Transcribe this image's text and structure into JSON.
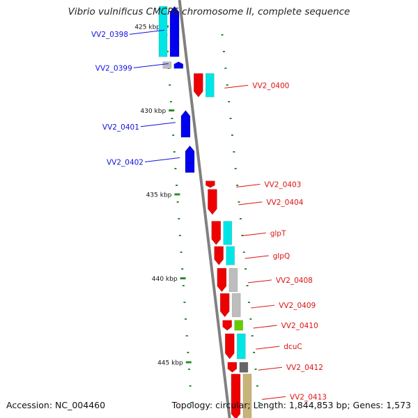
{
  "title": "Vibrio vulnificus CMCP6 chromosome II, complete sequence",
  "footer": {
    "accession": "Accession: NC_004460",
    "topology": "Topology: circular; Length: 1,844,853 bp; Genes: 1,573"
  },
  "colors": {
    "backbone": "#808080",
    "tick": "#2e8b2e",
    "label_blue": "#1010dd",
    "label_red": "#dd1010",
    "gene_blue": "#0000ee",
    "gene_red": "#ee0000",
    "cog_cyan": "#00e5e5",
    "cog_grey": "#bdbdbd",
    "cog_green": "#66cc00",
    "cog_dark": "#666666",
    "cog_khaki": "#c8b478"
  },
  "scale": {
    "unit": "kbp",
    "marks": [
      {
        "kbp": 425,
        "label": "425 kbp"
      },
      {
        "kbp": 430,
        "label": "430 kbp"
      },
      {
        "kbp": 435,
        "label": "435 kbp"
      },
      {
        "kbp": 440,
        "label": "440 kbp"
      },
      {
        "kbp": 445,
        "label": "445 kbp"
      }
    ]
  },
  "genes": [
    {
      "name": "VV2_0398",
      "strand": "-",
      "start_kbp": 423.8,
      "end_kbp": 426.8,
      "cog": "cyan"
    },
    {
      "name": "VV2_0399",
      "strand": "-",
      "start_kbp": 427.1,
      "end_kbp": 427.5,
      "cog": "grey"
    },
    {
      "name": "VV2_0400",
      "strand": "+",
      "start_kbp": 427.8,
      "end_kbp": 429.2,
      "cog": "cyan"
    },
    {
      "name": "VV2_0401",
      "strand": "-",
      "start_kbp": 430.0,
      "end_kbp": 431.6,
      "cog": ""
    },
    {
      "name": "VV2_0402",
      "strand": "-",
      "start_kbp": 432.1,
      "end_kbp": 433.7,
      "cog": ""
    },
    {
      "name": "VV2_0403",
      "strand": "+",
      "start_kbp": 434.2,
      "end_kbp": 434.6,
      "cog": ""
    },
    {
      "name": "VV2_0404",
      "strand": "+",
      "start_kbp": 434.7,
      "end_kbp": 436.2,
      "cog": ""
    },
    {
      "name": "glpT",
      "strand": "+",
      "start_kbp": 436.6,
      "end_kbp": 438.0,
      "cog": "cyan"
    },
    {
      "name": "glpQ",
      "strand": "+",
      "start_kbp": 438.1,
      "end_kbp": 439.2,
      "cog": "cyan"
    },
    {
      "name": "VV2_0408",
      "strand": "+",
      "start_kbp": 439.4,
      "end_kbp": 440.8,
      "cog": "grey"
    },
    {
      "name": "VV2_0409",
      "strand": "+",
      "start_kbp": 440.9,
      "end_kbp": 442.3,
      "cog": "grey"
    },
    {
      "name": "VV2_0410",
      "strand": "+",
      "start_kbp": 442.5,
      "end_kbp": 443.1,
      "cog": "green"
    },
    {
      "name": "dcuC",
      "strand": "+",
      "start_kbp": 443.3,
      "end_kbp": 444.8,
      "cog": "cyan"
    },
    {
      "name": "VV2_0412",
      "strand": "+",
      "start_kbp": 445.0,
      "end_kbp": 445.6,
      "cog": "dark"
    },
    {
      "name": "VV2_0413",
      "strand": "+",
      "start_kbp": 445.7,
      "end_kbp": 448.4,
      "cog": "khaki"
    }
  ]
}
